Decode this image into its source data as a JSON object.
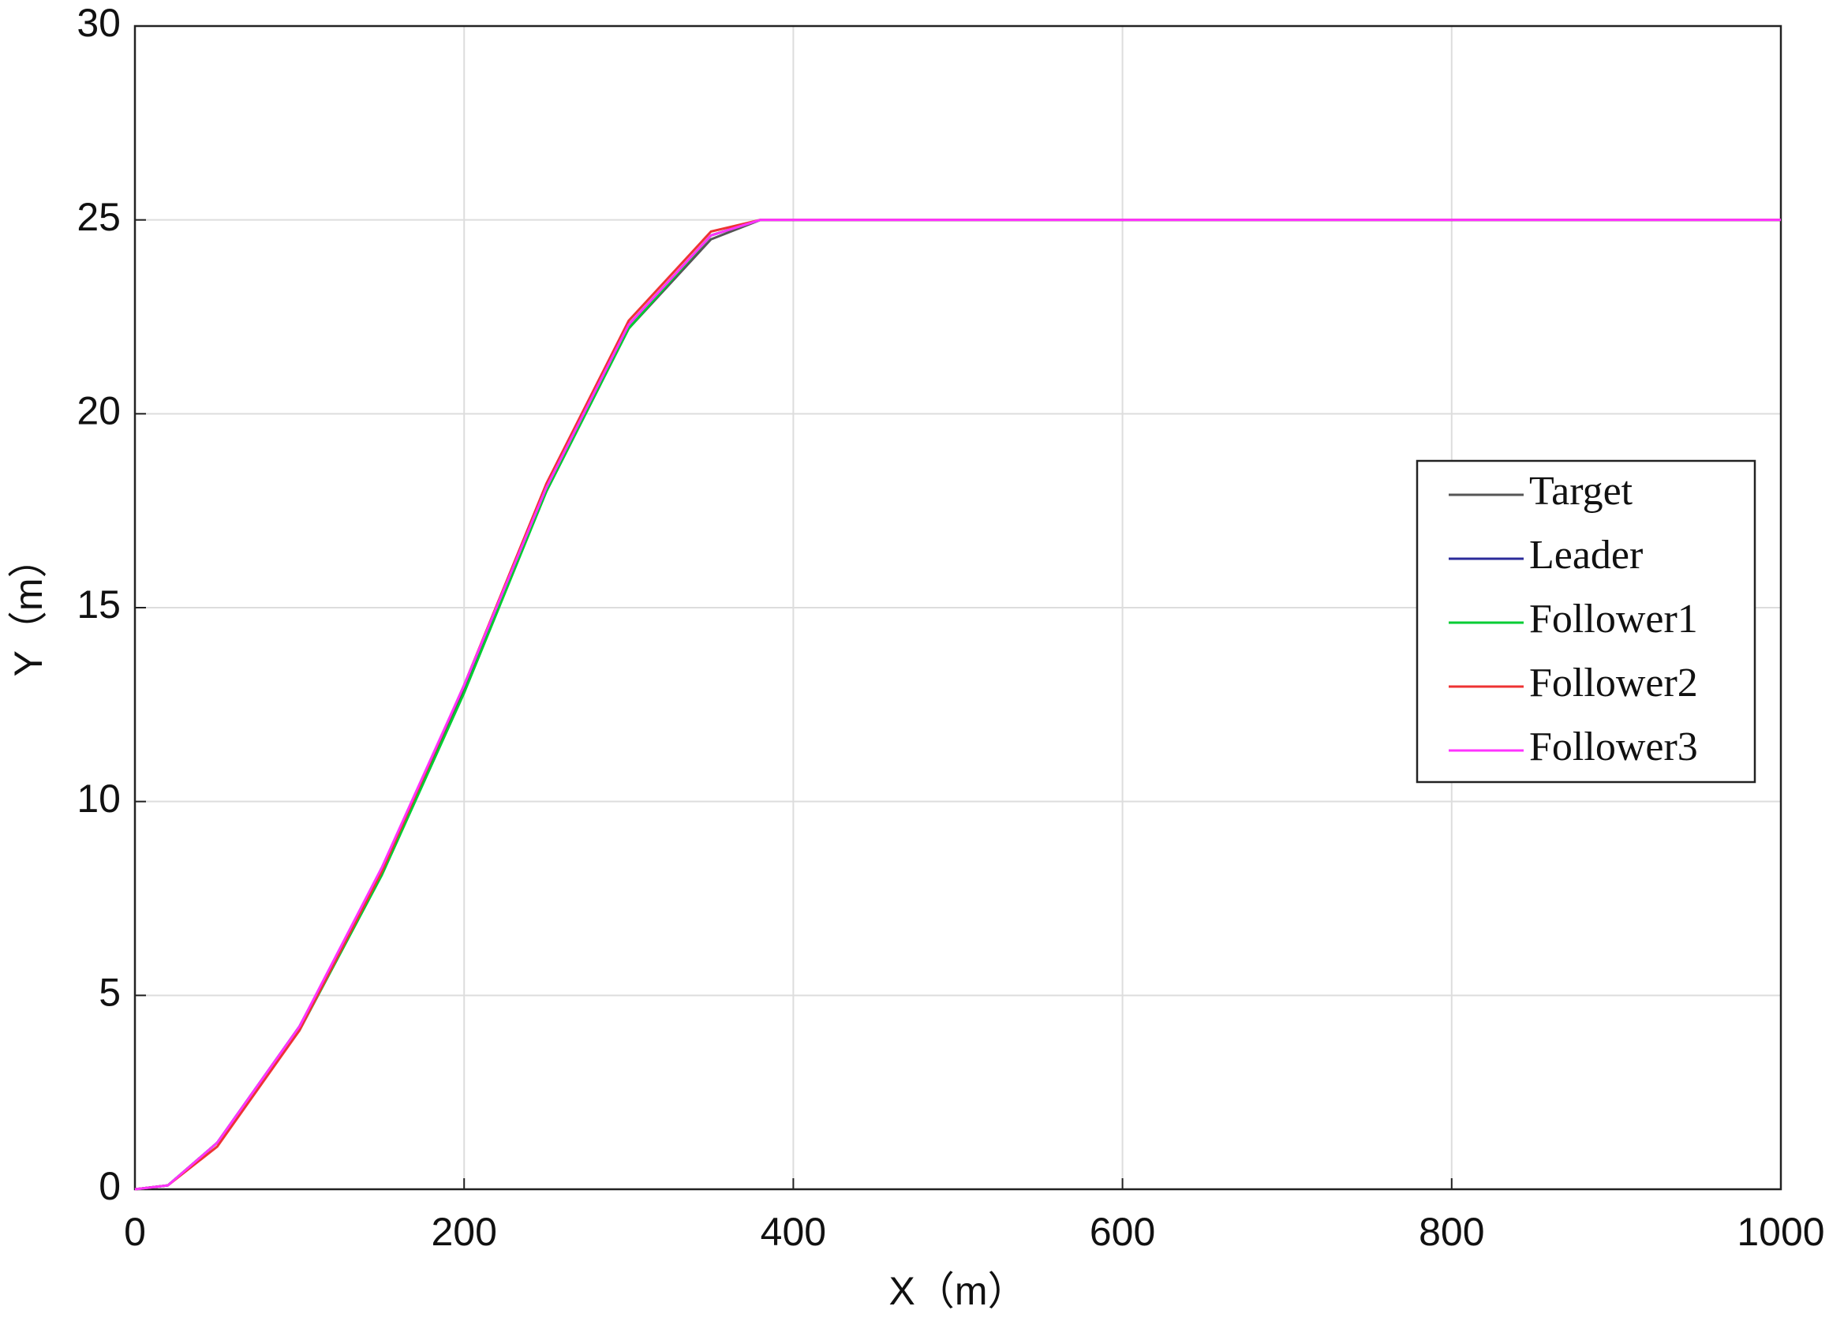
{
  "chart_data": {
    "type": "line",
    "xlabel": "X（m）",
    "ylabel": "Y（m）",
    "x": [
      0,
      20,
      50,
      100,
      150,
      200,
      250,
      300,
      350,
      380,
      420,
      600,
      800,
      1000
    ],
    "series": [
      {
        "name": "Target",
        "color": "#555555",
        "values": [
          0,
          0.1,
          1.2,
          4.2,
          8.2,
          12.9,
          18,
          22.2,
          24.5,
          25,
          25,
          25,
          25,
          25
        ]
      },
      {
        "name": "Leader",
        "color": "#2b2b9a",
        "values": [
          0,
          0.1,
          1.2,
          4.2,
          8.2,
          13,
          18.1,
          22.3,
          24.6,
          25,
          25,
          25,
          25,
          25
        ]
      },
      {
        "name": "Follower1",
        "color": "#00cc33",
        "values": [
          0,
          0.1,
          1.2,
          4.1,
          8.1,
          12.8,
          18,
          22.2,
          24.6,
          25,
          25,
          25,
          25,
          25
        ]
      },
      {
        "name": "Follower2",
        "color": "#ee3333",
        "values": [
          0,
          0.1,
          1.1,
          4.1,
          8.2,
          13,
          18.2,
          22.4,
          24.7,
          25,
          25,
          25,
          25,
          25
        ]
      },
      {
        "name": "Follower3",
        "color": "#ff33ff",
        "values": [
          0,
          0.1,
          1.2,
          4.2,
          8.3,
          13,
          18.1,
          22.3,
          24.6,
          25,
          25,
          25,
          25,
          25
        ]
      }
    ],
    "xlim": [
      0,
      1000
    ],
    "xticks": [
      0,
      200,
      400,
      600,
      800,
      1000
    ],
    "ylim": [
      0,
      30
    ],
    "yticks": [
      0,
      5,
      10,
      15,
      20,
      25,
      30
    ],
    "grid": true,
    "legend": "right"
  }
}
